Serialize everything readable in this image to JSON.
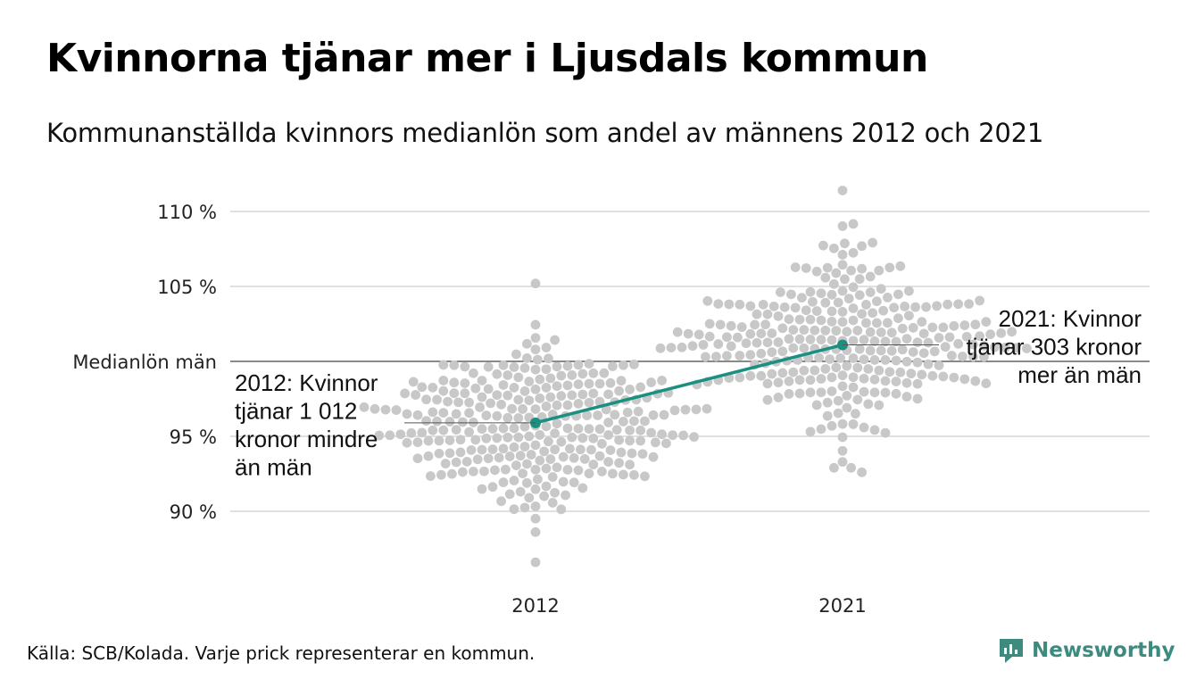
{
  "header": {
    "title": "Kvinnorna tjänar mer i Ljusdals kommun",
    "subtitle": "Kommunanställda kvinnors medianlön som andel av männens 2012 och 2021"
  },
  "chart_data": {
    "type": "scatter",
    "subtype": "beeswarm",
    "categories": [
      "2012",
      "2021"
    ],
    "y_ticks": [
      {
        "value": 90,
        "label": "90 %"
      },
      {
        "value": 95,
        "label": "95 %"
      },
      {
        "value": 105,
        "label": "105 %"
      },
      {
        "value": 110,
        "label": "110 %"
      }
    ],
    "reference_line": {
      "value": 100,
      "label": "Medianlön män"
    },
    "ylim": [
      86,
      111.5
    ],
    "grid": true,
    "highlight": {
      "color": "#1a9081",
      "points": [
        {
          "category": "2012",
          "value": 95.9
        },
        {
          "category": "2021",
          "value": 101.1
        }
      ]
    },
    "annotations": [
      {
        "category": "2012",
        "value": 95.9,
        "side": "left",
        "lines": [
          "2012: Kvinnor",
          "tjänar 1 012",
          "kronor mindre",
          "än män"
        ]
      },
      {
        "category": "2021",
        "value": 101.1,
        "side": "right",
        "lines": [
          "2021: Kvinnor",
          "tjänar 303 kronor",
          "mer än män"
        ]
      }
    ],
    "swarm": {
      "color": "#c8c8c8",
      "point_count_per_category": 290,
      "distributions": [
        {
          "category": "2012",
          "center": 95.7,
          "spread": 2.7,
          "min": 86.6,
          "max": 105.2
        },
        {
          "category": "2021",
          "center": 101.4,
          "spread": 2.8,
          "min": 92.6,
          "max": 111.4
        }
      ]
    }
  },
  "footer": {
    "source": "Källa: SCB/Kolada. Varje prick representerar en kommun.",
    "brand": "Newsworthy"
  },
  "colors": {
    "accent": "#1a9081",
    "dots": "#c8c8c8",
    "grid": "#e0e0e0",
    "brand": "#3d8a7e"
  }
}
